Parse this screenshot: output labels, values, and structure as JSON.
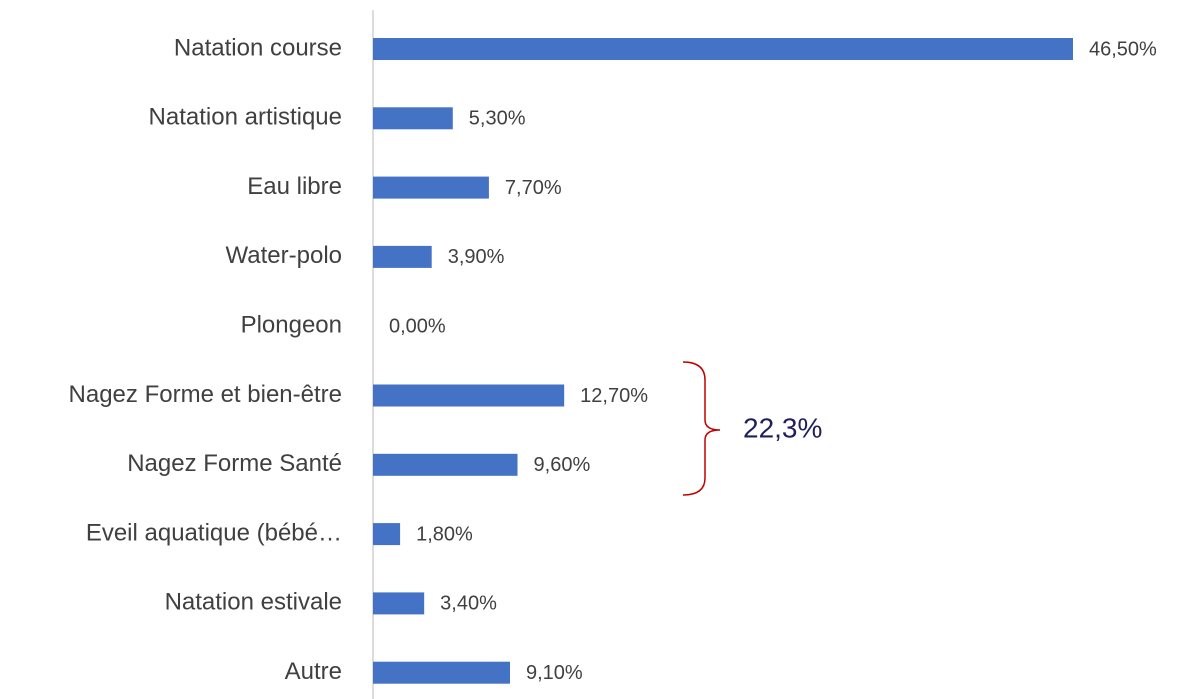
{
  "chart_data": {
    "type": "bar",
    "orientation": "horizontal",
    "categories": [
      "Natation course",
      "Natation artistique",
      "Eau libre",
      "Water-polo",
      "Plongeon",
      "Nagez Forme et bien-être",
      "Nagez Forme Santé",
      "Eveil aquatique (bébé…",
      "Natation estivale",
      "Autre"
    ],
    "values": [
      46.5,
      5.3,
      7.7,
      3.9,
      0,
      12.7,
      9.6,
      1.8,
      3.4,
      9.1
    ],
    "value_labels": [
      "46,50%",
      "5,30%",
      "7,70%",
      "3,90%",
      "0,00%",
      "12,70%",
      "9,60%",
      "1,80%",
      "3,40%",
      "9,10%"
    ],
    "color": "#4472c4",
    "annotation": "22,3%"
  }
}
